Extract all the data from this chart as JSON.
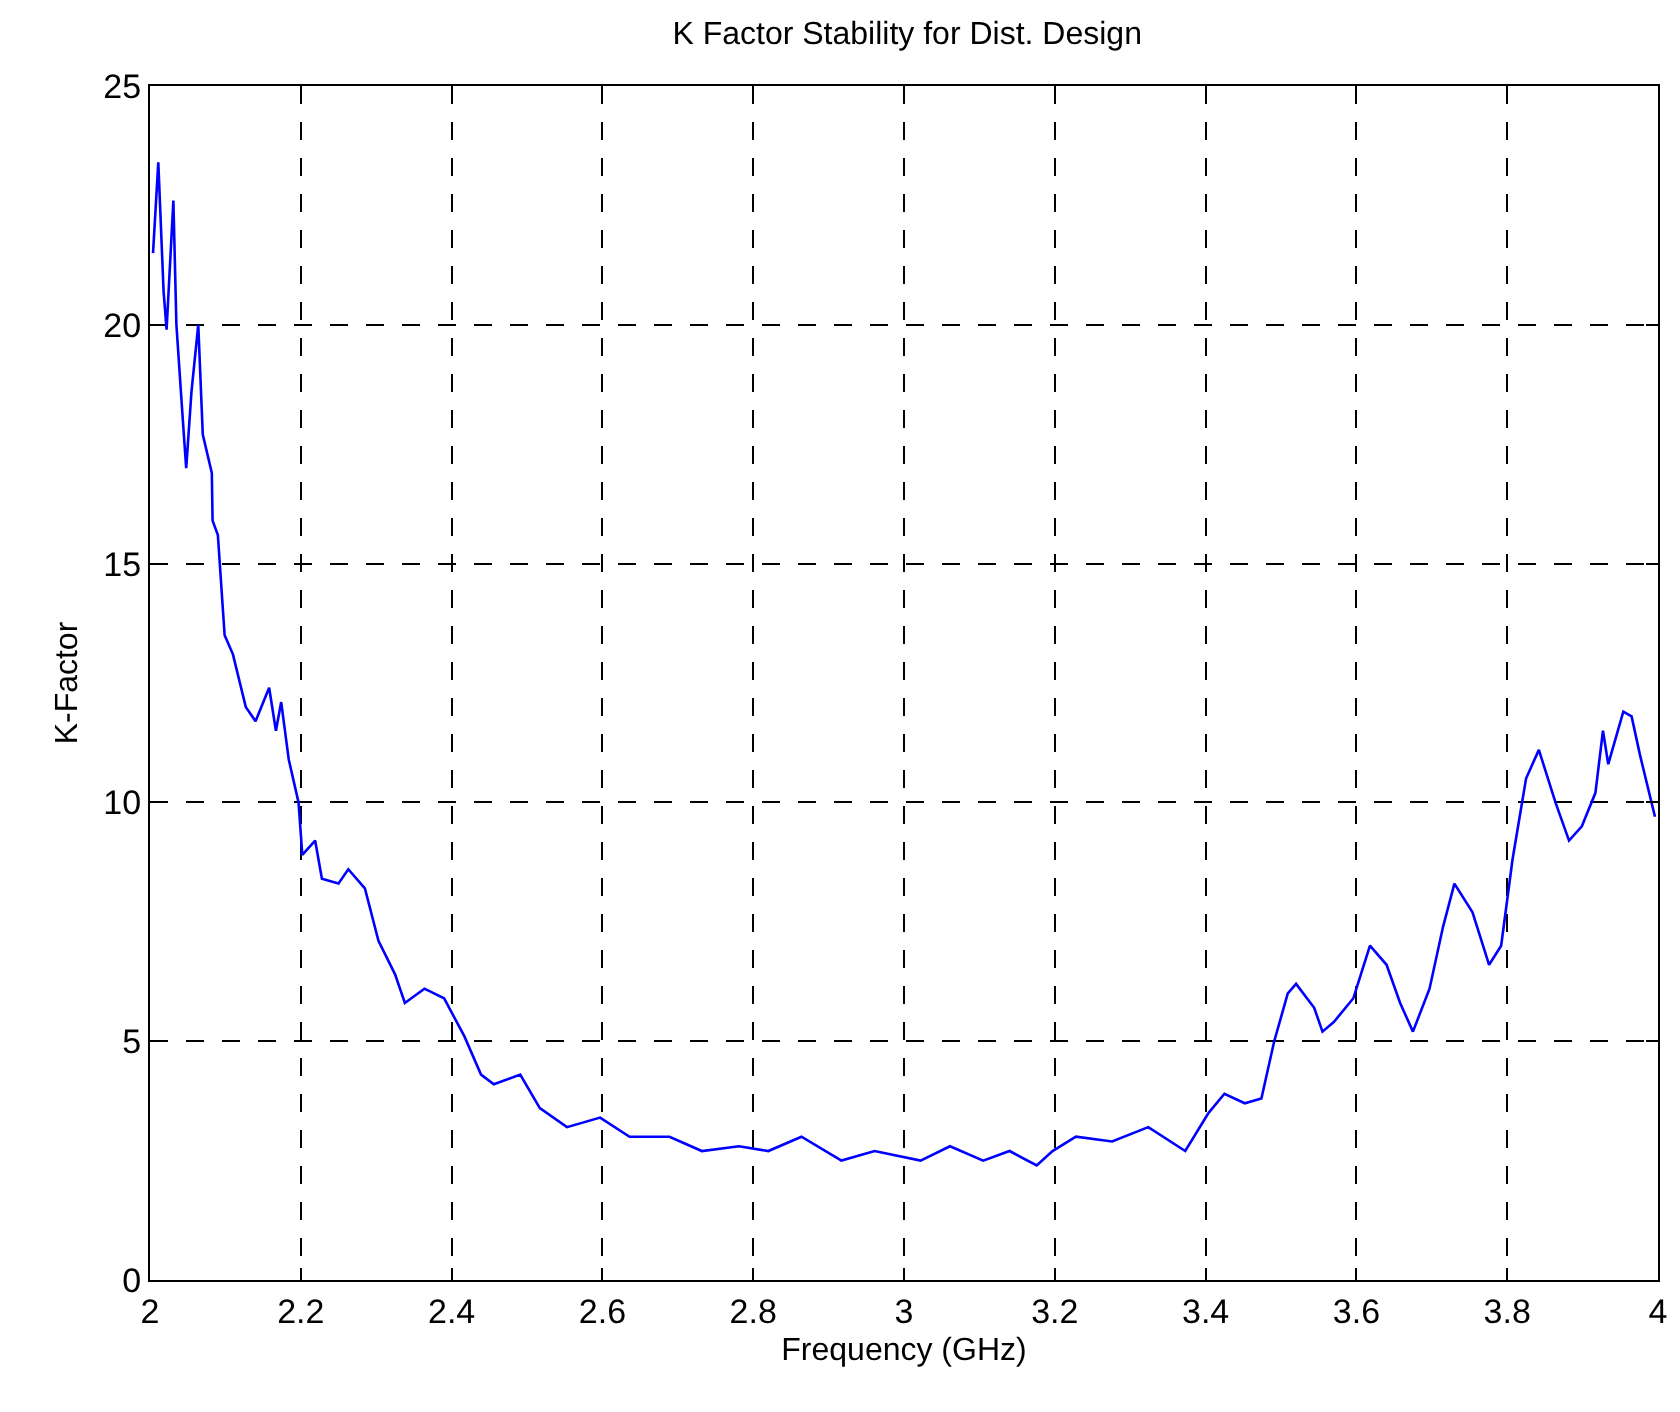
{
  "chart_data": {
    "type": "line",
    "title": "K Factor Stability for Dist. Design",
    "xlabel": "Frequency (GHz)",
    "ylabel": "K-Factor",
    "xlim": [
      2,
      4
    ],
    "xticks": [
      2,
      2.2,
      2.4,
      2.6,
      2.8,
      3,
      3.2,
      3.4,
      3.6,
      3.8,
      4
    ],
    "ylim": [
      0,
      25
    ],
    "yticks": [
      0,
      5,
      10,
      15,
      20,
      25
    ],
    "grid": true,
    "marker": "none",
    "line_style": "solid",
    "series": [
      {
        "color": "#0000ff",
        "x": [
          2.004,
          2.011,
          2.018,
          2.022,
          2.031,
          2.035,
          2.044,
          2.048,
          2.055,
          2.064,
          2.07,
          2.082,
          2.083,
          2.09,
          2.099,
          2.11,
          2.127,
          2.14,
          2.158,
          2.167,
          2.174,
          2.184,
          2.197,
          2.202,
          2.219,
          2.228,
          2.25,
          2.263,
          2.285,
          2.303,
          2.325,
          2.338,
          2.364,
          2.39,
          2.417,
          2.439,
          2.456,
          2.491,
          2.517,
          2.553,
          2.597,
          2.636,
          2.689,
          2.732,
          2.781,
          2.82,
          2.864,
          2.917,
          2.961,
          3.022,
          3.061,
          3.105,
          3.14,
          3.176,
          3.197,
          3.228,
          3.276,
          3.324,
          3.373,
          3.404,
          3.425,
          3.452,
          3.474,
          3.491,
          3.509,
          3.52,
          3.544,
          3.555,
          3.57,
          3.596,
          3.618,
          3.64,
          3.658,
          3.675,
          3.697,
          3.715,
          3.73,
          3.754,
          3.776,
          3.792,
          3.807,
          3.825,
          3.842,
          3.864,
          3.882,
          3.899,
          3.917,
          3.927,
          3.934,
          3.954,
          3.965,
          3.976,
          3.996
        ],
        "values": [
          21.5,
          23.4,
          20.7,
          19.9,
          22.6,
          20.0,
          17.9,
          17.0,
          18.6,
          20.0,
          17.7,
          16.9,
          15.9,
          15.6,
          13.5,
          13.1,
          12.0,
          11.7,
          12.4,
          11.5,
          12.1,
          10.9,
          10.0,
          8.9,
          9.2,
          8.4,
          8.3,
          8.6,
          8.2,
          7.1,
          6.4,
          5.8,
          6.1,
          5.9,
          5.1,
          4.3,
          4.1,
          4.3,
          3.6,
          3.2,
          3.4,
          3.0,
          3.0,
          2.7,
          2.8,
          2.7,
          3.0,
          2.5,
          2.7,
          2.5,
          2.8,
          2.5,
          2.7,
          2.4,
          2.7,
          3.0,
          2.9,
          3.2,
          2.7,
          3.5,
          3.9,
          3.7,
          3.8,
          5.0,
          6.0,
          6.2,
          5.7,
          5.2,
          5.4,
          5.9,
          7.0,
          6.6,
          5.8,
          5.2,
          6.1,
          7.4,
          8.3,
          7.7,
          6.6,
          7.0,
          8.8,
          10.5,
          11.1,
          10.0,
          9.2,
          9.5,
          10.2,
          11.5,
          10.8,
          11.9,
          11.8,
          11.0,
          9.7
        ]
      }
    ]
  }
}
